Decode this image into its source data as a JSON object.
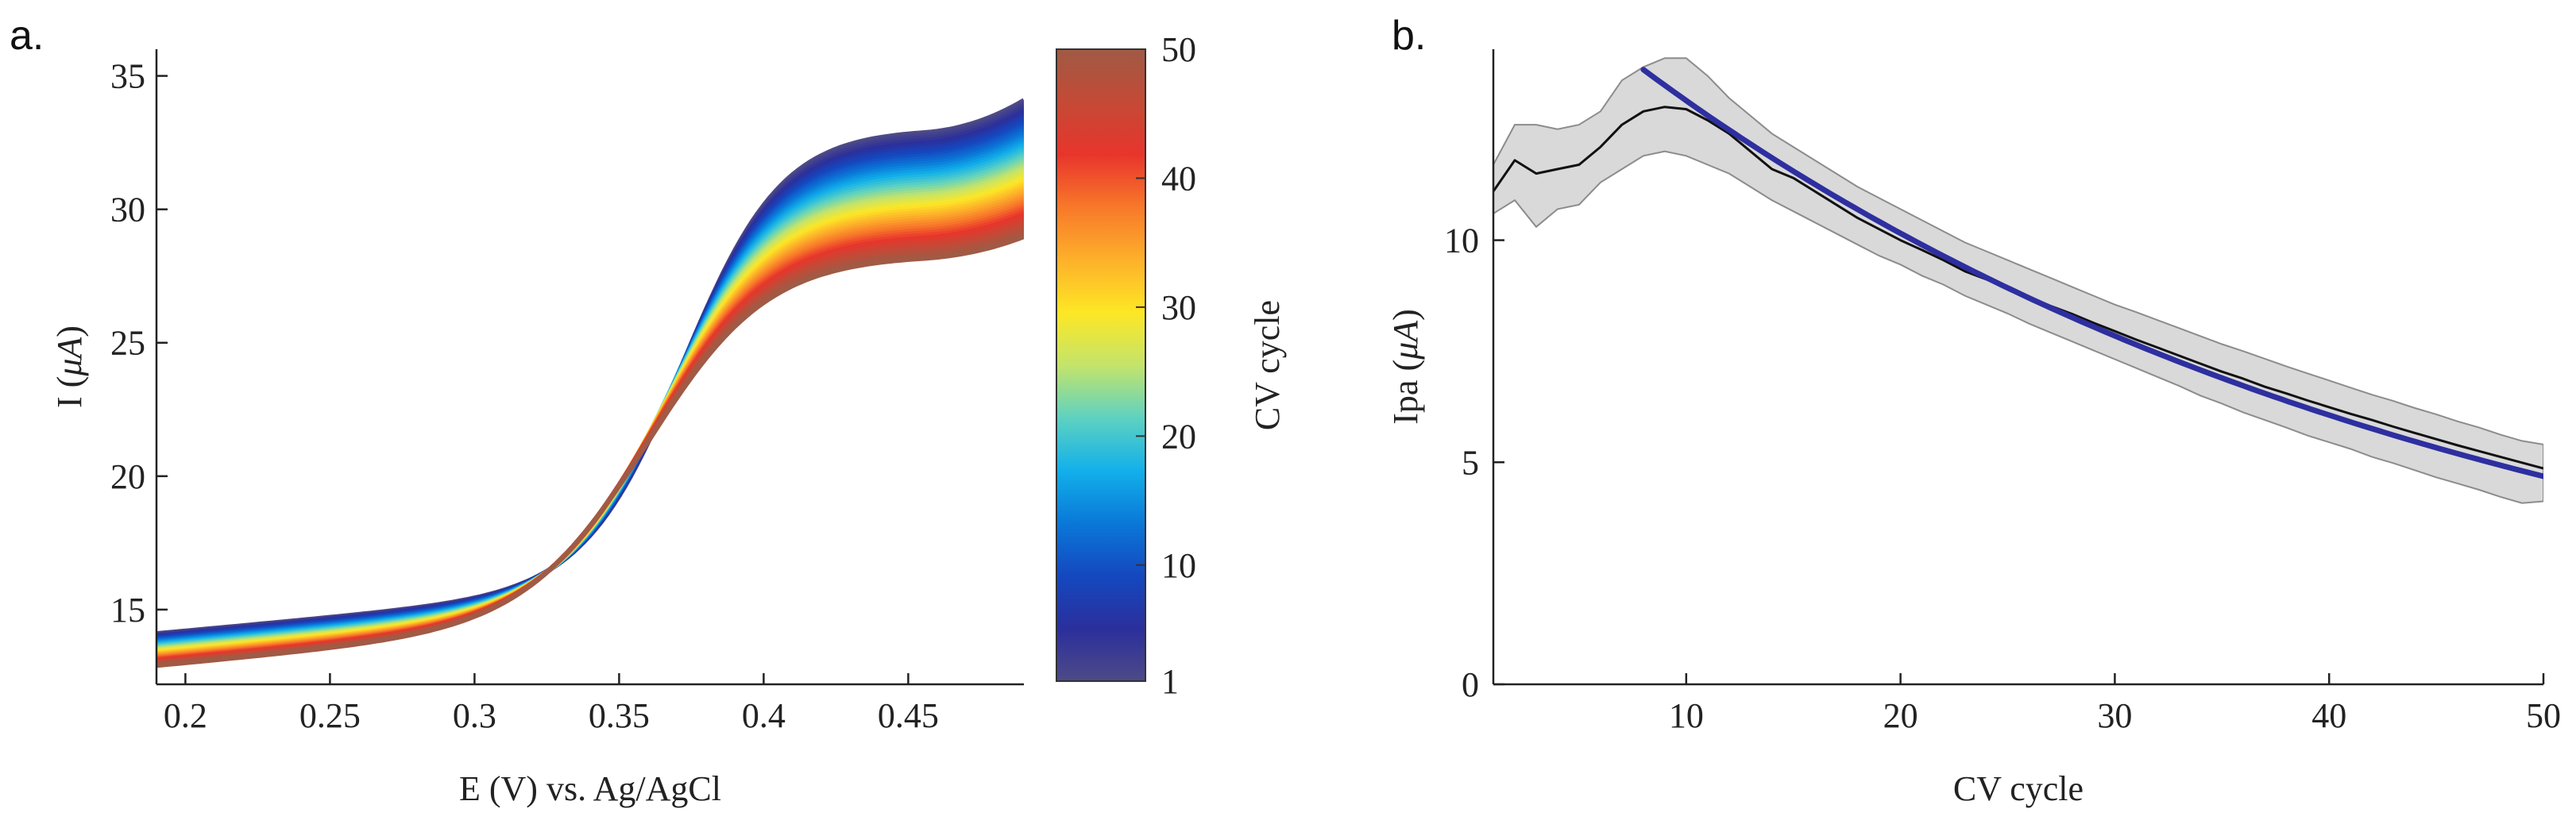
{
  "figure": {
    "panel_a_label": "a.",
    "panel_b_label": "b."
  },
  "chart_data": [
    {
      "id": "a",
      "type": "line",
      "xlabel": "E (V) vs. Ag/AgCl",
      "ylabel_main": "I (",
      "ylabel_unit": "μA",
      "ylabel_close": ")",
      "xlim": [
        0.19,
        0.49
      ],
      "ylim": [
        12.2,
        36.0
      ],
      "xticks": [
        0.2,
        0.25,
        0.3,
        0.35,
        0.4,
        0.45
      ],
      "xtick_labels": [
        "0.2",
        "0.25",
        "0.3",
        "0.35",
        "0.4",
        "0.45"
      ],
      "yticks": [
        15,
        20,
        25,
        30,
        35
      ],
      "ytick_labels": [
        "15",
        "20",
        "25",
        "30",
        "35"
      ],
      "series_count": 50,
      "curve_model": {
        "description": "sigmoidal anodic sweep per cycle n",
        "start_current_first": 14.1,
        "start_current_last": 12.9,
        "plateau_first": 33.0,
        "plateau_last": 28.3,
        "midpoint_E": 0.365,
        "end_current_first": 34.1,
        "end_current_last": 29.0
      },
      "colorbar": {
        "label": "CV cycle",
        "range": [
          1,
          50
        ],
        "ticks": [
          1,
          10,
          20,
          30,
          40,
          50
        ],
        "tick_labels": [
          "1",
          "10",
          "20",
          "30",
          "40",
          "50"
        ],
        "colormap": [
          "#4d4a87",
          "#2b2f9c",
          "#1448c0",
          "#0a78d8",
          "#12b0ea",
          "#5fd2c0",
          "#c4e46a",
          "#fde725",
          "#fdb02a",
          "#f8782a",
          "#e8352c",
          "#c44a36",
          "#a05a45"
        ]
      }
    },
    {
      "id": "b",
      "type": "line",
      "xlabel": "CV cycle",
      "ylabel_main": "Ipa (",
      "ylabel_unit": "μA",
      "ylabel_close": ")",
      "xlim": [
        1,
        50
      ],
      "ylim": [
        0,
        14.3
      ],
      "xticks": [
        10,
        20,
        30,
        40,
        50
      ],
      "xtick_labels": [
        "10",
        "20",
        "30",
        "40",
        "50"
      ],
      "yticks": [
        0,
        5,
        10
      ],
      "ytick_labels": [
        "0",
        "5",
        "10"
      ],
      "x": [
        1,
        2,
        3,
        4,
        5,
        6,
        7,
        8,
        9,
        10,
        11,
        12,
        13,
        14,
        15,
        16,
        17,
        18,
        19,
        20,
        21,
        22,
        23,
        24,
        25,
        26,
        27,
        28,
        29,
        30,
        31,
        32,
        33,
        34,
        35,
        36,
        37,
        38,
        39,
        40,
        41,
        42,
        43,
        44,
        45,
        46,
        47,
        48,
        49,
        50
      ],
      "series": [
        {
          "kind": "mean",
          "color": "#111111",
          "values": [
            11.1,
            11.8,
            11.5,
            11.6,
            11.7,
            12.1,
            12.6,
            12.9,
            13.0,
            12.95,
            12.7,
            12.4,
            12.0,
            11.6,
            11.4,
            11.1,
            10.8,
            10.5,
            10.25,
            10.0,
            9.78,
            9.55,
            9.3,
            9.12,
            8.92,
            8.72,
            8.52,
            8.34,
            8.14,
            7.95,
            7.76,
            7.58,
            7.4,
            7.22,
            7.04,
            6.88,
            6.7,
            6.55,
            6.39,
            6.24,
            6.09,
            5.95,
            5.8,
            5.66,
            5.52,
            5.38,
            5.25,
            5.12,
            4.99,
            4.86
          ]
        },
        {
          "kind": "band-upper",
          "color": "#d9d9d9",
          "values": [
            11.7,
            12.6,
            12.6,
            12.5,
            12.6,
            12.9,
            13.6,
            13.9,
            14.1,
            14.1,
            13.7,
            13.2,
            12.8,
            12.4,
            12.1,
            11.8,
            11.5,
            11.2,
            10.95,
            10.7,
            10.45,
            10.2,
            9.95,
            9.75,
            9.55,
            9.35,
            9.15,
            8.95,
            8.75,
            8.55,
            8.38,
            8.2,
            8.02,
            7.84,
            7.66,
            7.5,
            7.33,
            7.16,
            7.0,
            6.84,
            6.68,
            6.52,
            6.38,
            6.22,
            6.08,
            5.92,
            5.78,
            5.62,
            5.48,
            5.4
          ]
        },
        {
          "kind": "band-lower",
          "color": "#d9d9d9",
          "values": [
            10.6,
            10.9,
            10.3,
            10.7,
            10.8,
            11.3,
            11.6,
            11.9,
            12.0,
            11.9,
            11.7,
            11.5,
            11.2,
            10.9,
            10.65,
            10.4,
            10.15,
            9.9,
            9.65,
            9.45,
            9.2,
            9.0,
            8.75,
            8.55,
            8.35,
            8.12,
            7.92,
            7.72,
            7.52,
            7.32,
            7.12,
            6.92,
            6.72,
            6.5,
            6.32,
            6.12,
            5.95,
            5.78,
            5.6,
            5.45,
            5.3,
            5.12,
            4.98,
            4.82,
            4.66,
            4.52,
            4.38,
            4.22,
            4.08,
            4.12
          ]
        },
        {
          "kind": "fit",
          "color": "#2e2fa0",
          "x_start": 8,
          "amplitude": 13.84,
          "decay": 0.0258
        }
      ]
    }
  ]
}
